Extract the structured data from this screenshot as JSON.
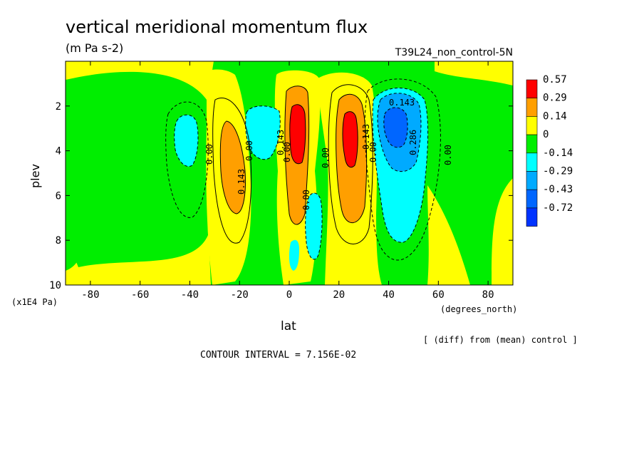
{
  "chart_data": {
    "type": "heatmap",
    "title": "vertical meridional momentum flux",
    "subtitle": "(m Pa s-2)",
    "run_label": "T39L24_non_control-5N",
    "xlabel": "lat",
    "x_units": "(degrees_north)",
    "ylabel": "plev",
    "y_units": "(x1E4 Pa)",
    "xlim": [
      -90,
      90
    ],
    "ylim": [
      10,
      0
    ],
    "x_ticks": [
      -80,
      -60,
      -40,
      -20,
      0,
      20,
      40,
      60,
      80
    ],
    "x_tick_labels": [
      "-80",
      "-60",
      "-40",
      "-20",
      "0",
      "20",
      "40",
      "60",
      "80"
    ],
    "y_ticks": [
      2,
      4,
      6,
      8,
      10
    ],
    "y_tick_labels": [
      "2",
      "4",
      "6",
      "8",
      "10"
    ],
    "legend": {
      "placement": "right",
      "levels": [
        "0.57",
        "0.29",
        "0.14",
        "0",
        "-0.14",
        "-0.29",
        "-0.43",
        "-0.72"
      ],
      "colors": [
        "#ff0000",
        "#ff9f00",
        "#ffff00",
        "#00ee00",
        "#00ffff",
        "#00aaff",
        "#0066ff",
        "#0033ff"
      ]
    },
    "contour_labels": [
      "0.143",
      "0.00",
      "0.143",
      "0.00",
      "0.00",
      "0.00",
      "0.143",
      "0.00",
      "0.143",
      "0.00",
      "0.286",
      "0.00"
    ],
    "note": "[ (diff) from (mean) control ]",
    "contour_interval": "CONTOUR INTERVAL = 7.156E-02",
    "features": [
      {
        "lat": -43,
        "plev": 3.5,
        "value": -0.2
      },
      {
        "lat": -24,
        "plev": 4.7,
        "value": 0.2
      },
      {
        "lat": -6,
        "plev": 2.8,
        "value": -0.2
      },
      {
        "lat": 3,
        "plev": 3.6,
        "value": 0.5
      },
      {
        "lat": 10,
        "plev": 7.8,
        "value": -0.2
      },
      {
        "lat": 25,
        "plev": 3.8,
        "value": 0.45
      },
      {
        "lat": 42,
        "plev": 3.2,
        "value": -0.55
      },
      {
        "lat": 45,
        "plev": 5.5,
        "value": -0.2
      }
    ]
  }
}
